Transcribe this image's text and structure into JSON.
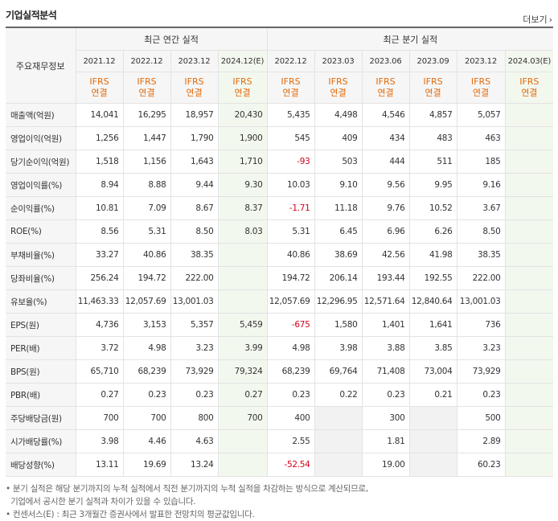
{
  "title": "기업실적분석",
  "more_label": "더보기",
  "header": {
    "row_label": "주요재무정보",
    "annual_title": "최근 연간 실적",
    "quarter_title": "최근 분기 실적",
    "annual_periods": [
      "2021.12",
      "2022.12",
      "2023.12",
      "2024.12(E)"
    ],
    "quarter_periods": [
      "2022.12",
      "2023.03",
      "2023.06",
      "2023.09",
      "2023.12",
      "2024.03(E)"
    ],
    "basis_top": "IFRS",
    "basis_bottom": "연결"
  },
  "rows": [
    {
      "label": "매출액(억원)",
      "values": [
        "14,041",
        "16,295",
        "18,957",
        "20,430",
        "5,435",
        "4,498",
        "4,546",
        "4,857",
        "5,057",
        ""
      ]
    },
    {
      "label": "영업이익(억원)",
      "values": [
        "1,256",
        "1,447",
        "1,790",
        "1,900",
        "545",
        "409",
        "434",
        "483",
        "463",
        ""
      ]
    },
    {
      "label": "당기순이익(억원)",
      "values": [
        "1,518",
        "1,156",
        "1,643",
        "1,710",
        "-93",
        "503",
        "444",
        "511",
        "185",
        ""
      ]
    },
    {
      "label": "영업이익률(%)",
      "values": [
        "8.94",
        "8.88",
        "9.44",
        "9.30",
        "10.03",
        "9.10",
        "9.56",
        "9.95",
        "9.16",
        ""
      ]
    },
    {
      "label": "순이익률(%)",
      "values": [
        "10.81",
        "7.09",
        "8.67",
        "8.37",
        "-1.71",
        "11.18",
        "9.76",
        "10.52",
        "3.67",
        ""
      ]
    },
    {
      "label": "ROE(%)",
      "values": [
        "8.56",
        "5.31",
        "8.50",
        "8.03",
        "5.31",
        "6.45",
        "6.96",
        "6.26",
        "8.50",
        ""
      ]
    },
    {
      "label": "부채비율(%)",
      "values": [
        "33.27",
        "40.86",
        "38.35",
        "",
        "40.86",
        "38.69",
        "42.56",
        "41.98",
        "38.35",
        ""
      ]
    },
    {
      "label": "당좌비율(%)",
      "values": [
        "256.24",
        "194.72",
        "222.00",
        "",
        "194.72",
        "206.14",
        "193.44",
        "192.55",
        "222.00",
        ""
      ]
    },
    {
      "label": "유보율(%)",
      "values": [
        "11,463.33",
        "12,057.69",
        "13,001.03",
        "",
        "12,057.69",
        "12,296.95",
        "12,571.64",
        "12,840.64",
        "13,001.03",
        ""
      ]
    },
    {
      "label": "EPS(원)",
      "values": [
        "4,736",
        "3,153",
        "5,357",
        "5,459",
        "-675",
        "1,580",
        "1,401",
        "1,641",
        "736",
        ""
      ]
    },
    {
      "label": "PER(배)",
      "values": [
        "3.72",
        "4.98",
        "3.23",
        "3.99",
        "4.98",
        "3.98",
        "3.88",
        "3.85",
        "3.23",
        ""
      ]
    },
    {
      "label": "BPS(원)",
      "values": [
        "65,710",
        "68,239",
        "73,929",
        "79,324",
        "68,239",
        "69,764",
        "71,408",
        "73,004",
        "73,929",
        ""
      ]
    },
    {
      "label": "PBR(배)",
      "values": [
        "0.27",
        "0.23",
        "0.23",
        "0.27",
        "0.23",
        "0.22",
        "0.23",
        "0.21",
        "0.23",
        ""
      ]
    },
    {
      "label": "주당배당금(원)",
      "values": [
        "700",
        "700",
        "800",
        "700",
        "400",
        "",
        "300",
        "",
        "500",
        ""
      ]
    },
    {
      "label": "시가배당률(%)",
      "values": [
        "3.98",
        "4.46",
        "4.63",
        "",
        "2.55",
        "",
        "1.81",
        "",
        "2.89",
        ""
      ]
    },
    {
      "label": "배당성향(%)",
      "values": [
        "13.11",
        "19.69",
        "13.24",
        "",
        "-52.54",
        "",
        "19.00",
        "",
        "60.23",
        ""
      ]
    }
  ],
  "notes": [
    "• 분기 실적은 해당 분기까지의 누적 실적에서 직전 분기까지의 누적 실적을 차감하는 방식으로 계산되므로,",
    "  기업에서 공시한 분기 실적과 차이가 있을 수 있습니다.",
    "• 컨센서스(E) : 최근 3개월간 증권사에서 발표한 전망치의 평균값입니다."
  ],
  "colors": {
    "negative": "#d0021b",
    "ifrs": "#e36a0a",
    "estimate_bg": "#f3f8ef"
  }
}
